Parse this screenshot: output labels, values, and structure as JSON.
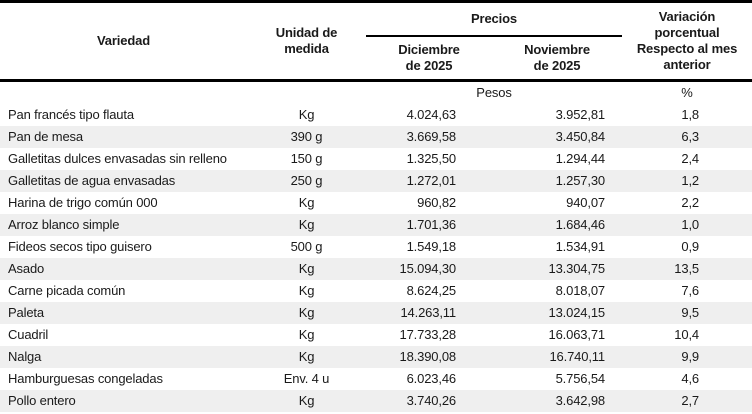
{
  "table": {
    "headers": {
      "variety": "Variedad",
      "unit": "Unidad de\nmedida",
      "prices_group": "Precios",
      "col_dec": "Diciembre\nde 2025",
      "col_nov": "Noviembre\nde 2025",
      "variation": "Variación\nporcentual\nRespecto al mes\nanterior"
    },
    "unit_row": {
      "prices_unit": "Pesos",
      "variation_unit": "%"
    },
    "rows": [
      {
        "variety": "Pan francés tipo flauta",
        "unit": "Kg",
        "dec": "4.024,63",
        "nov": "3.952,81",
        "var": "1,8"
      },
      {
        "variety": "Pan de mesa",
        "unit": "390 g",
        "dec": "3.669,58",
        "nov": "3.450,84",
        "var": "6,3"
      },
      {
        "variety": "Galletitas dulces envasadas sin relleno",
        "unit": "150 g",
        "dec": "1.325,50",
        "nov": "1.294,44",
        "var": "2,4"
      },
      {
        "variety": "Galletitas de agua envasadas",
        "unit": "250 g",
        "dec": "1.272,01",
        "nov": "1.257,30",
        "var": "1,2"
      },
      {
        "variety": "Harina de trigo común 000",
        "unit": "Kg",
        "dec": "960,82",
        "nov": "940,07",
        "var": "2,2"
      },
      {
        "variety": "Arroz blanco simple",
        "unit": "Kg",
        "dec": "1.701,36",
        "nov": "1.684,46",
        "var": "1,0"
      },
      {
        "variety": "Fideos secos tipo guisero",
        "unit": "500 g",
        "dec": "1.549,18",
        "nov": "1.534,91",
        "var": "0,9"
      },
      {
        "variety": "Asado",
        "unit": "Kg",
        "dec": "15.094,30",
        "nov": "13.304,75",
        "var": "13,5"
      },
      {
        "variety": "Carne picada común",
        "unit": "Kg",
        "dec": "8.624,25",
        "nov": "8.018,07",
        "var": "7,6"
      },
      {
        "variety": "Paleta",
        "unit": "Kg",
        "dec": "14.263,11",
        "nov": "13.024,15",
        "var": "9,5"
      },
      {
        "variety": "Cuadril",
        "unit": "Kg",
        "dec": "17.733,28",
        "nov": "16.063,71",
        "var": "10,4"
      },
      {
        "variety": "Nalga",
        "unit": "Kg",
        "dec": "18.390,08",
        "nov": "16.740,11",
        "var": "9,9"
      },
      {
        "variety": "Hamburguesas congeladas",
        "unit": "Env. 4 u",
        "dec": "6.023,46",
        "nov": "5.756,54",
        "var": "4,6"
      },
      {
        "variety": "Pollo entero",
        "unit": "Kg",
        "dec": "3.740,26",
        "nov": "3.642,98",
        "var": "2,7"
      }
    ],
    "colors": {
      "stripe": "#efefef",
      "border": "#000000",
      "text": "#1a1a1a"
    }
  }
}
